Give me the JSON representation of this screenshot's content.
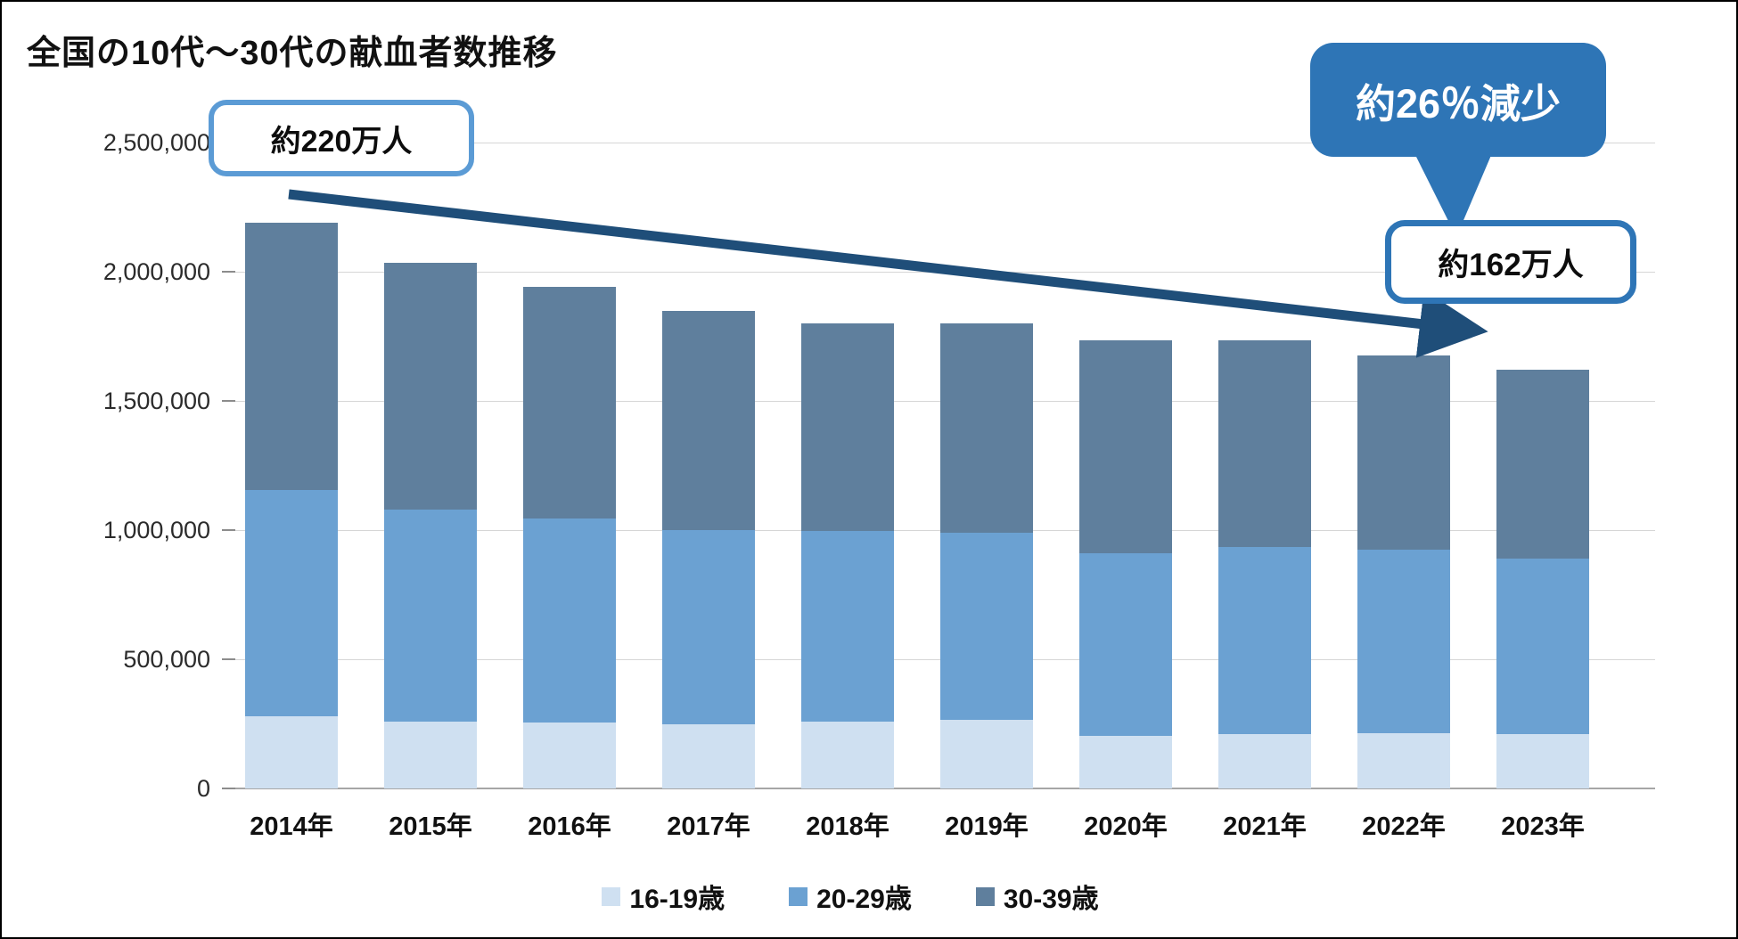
{
  "page": {
    "title": "全国の10代〜30代の献血者数推移"
  },
  "annotations": {
    "start_label": "約220万人",
    "end_label": "約162万人",
    "change_label": "約26％減少"
  },
  "chart_data": {
    "type": "bar",
    "stacked": true,
    "title": "全国の10代〜30代の献血者数推移",
    "categories": [
      "2014年",
      "2015年",
      "2016年",
      "2017年",
      "2018年",
      "2019年",
      "2020年",
      "2021年",
      "2022年",
      "2023年"
    ],
    "series": [
      {
        "name": "16-19歳",
        "color": "#cfe0f1",
        "values": [
          280000,
          260000,
          255000,
          250000,
          260000,
          265000,
          205000,
          210000,
          215000,
          210000
        ]
      },
      {
        "name": "20-29歳",
        "color": "#6ba1d2",
        "values": [
          875000,
          820000,
          790000,
          750000,
          735000,
          725000,
          705000,
          725000,
          710000,
          680000
        ]
      },
      {
        "name": "30-39歳",
        "color": "#5f7f9d",
        "values": [
          1035000,
          955000,
          895000,
          850000,
          805000,
          810000,
          825000,
          800000,
          750000,
          730000
        ]
      }
    ],
    "totals": [
      2190000,
      2035000,
      1940000,
      1850000,
      1800000,
      1800000,
      1735000,
      1735000,
      1675000,
      1620000
    ],
    "ylim": [
      0,
      2500000
    ],
    "ytick_interval": 500000,
    "ytick_labels": [
      "0",
      "500,000",
      "1,000,000",
      "1,500,000",
      "2,000,000",
      "2,500,000"
    ],
    "grid": true,
    "legend_position": "bottom",
    "xlabel": "",
    "ylabel": ""
  },
  "colors": {
    "arrow": "#1f4e79",
    "bubble_blue": "#2e75b6",
    "start_box_border": "#5b9bd5",
    "gridline": "#d6d6d6",
    "zero_line": "#a6a6a6"
  }
}
